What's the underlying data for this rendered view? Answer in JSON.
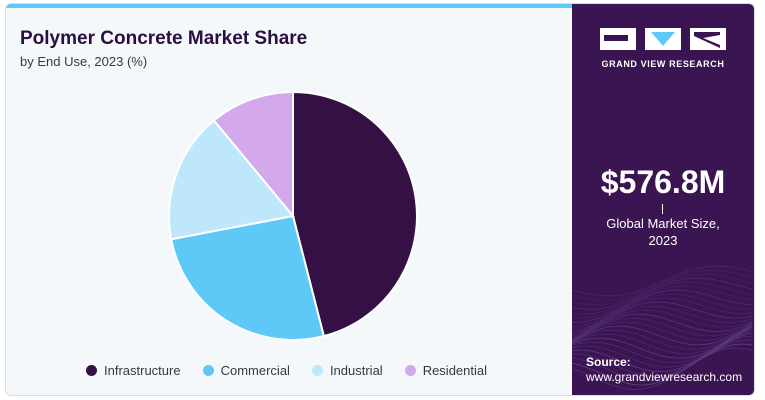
{
  "colors": {
    "accent": "#5ec8f7",
    "panel": "#3a1552",
    "background": "#f4f8fb"
  },
  "chart_data": {
    "type": "pie",
    "title": "Polymer Concrete Market Share",
    "subtitle": "by End Use, 2023 (%)",
    "legend_position": "bottom",
    "slices": [
      {
        "label": "Infrastructure",
        "value": 46,
        "color": "#351045"
      },
      {
        "label": "Commercial",
        "value": 26,
        "color": "#5ec8f7"
      },
      {
        "label": "Industrial",
        "value": 17,
        "color": "#bfe7fb"
      },
      {
        "label": "Residential",
        "value": 11,
        "color": "#d4a9ec"
      }
    ]
  },
  "sidebar": {
    "brand": "GRAND VIEW RESEARCH",
    "market_size": "$576.8M",
    "market_caption_line1": "Global Market Size,",
    "market_caption_line2": "2023",
    "source_label": "Source:",
    "source_url": "www.grandviewresearch.com"
  }
}
